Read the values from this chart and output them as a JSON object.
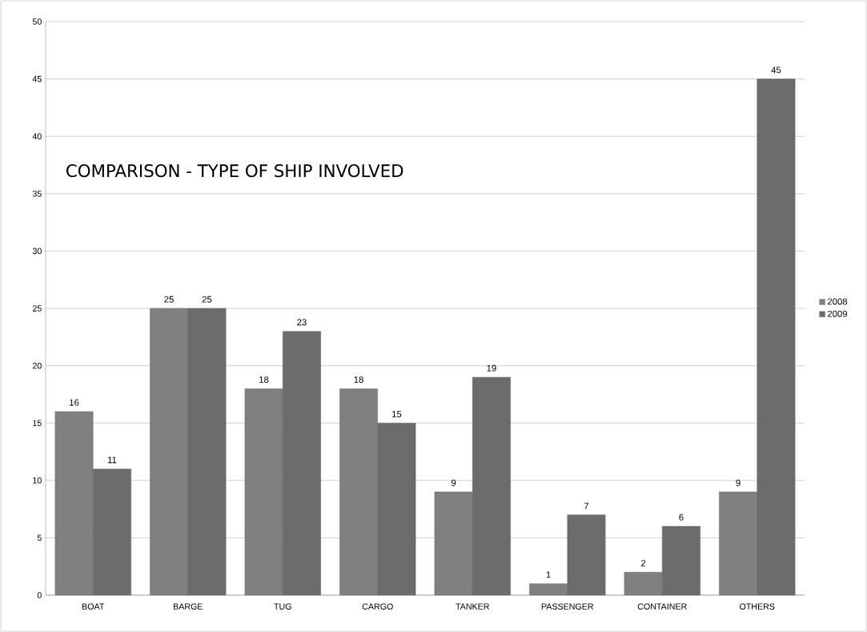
{
  "chart_data": {
    "type": "bar",
    "title": "COMPARISON - TYPE OF SHIP INVOLVED",
    "categories": [
      "BOAT",
      "BARGE",
      "TUG",
      "CARGO",
      "TANKER",
      "PASSENGER",
      "CONTAINER",
      "OTHERS"
    ],
    "series": [
      {
        "name": "2008",
        "color": "#808080",
        "values": [
          16,
          25,
          18,
          18,
          9,
          1,
          2,
          9
        ]
      },
      {
        "name": "2009",
        "color": "#6c6c6c",
        "values": [
          11,
          25,
          23,
          15,
          19,
          7,
          6,
          45
        ]
      }
    ],
    "ylim": [
      0,
      50
    ],
    "yticks": [
      0,
      5,
      10,
      15,
      20,
      25,
      30,
      35,
      40,
      45,
      50
    ],
    "grid": "y",
    "legend": "right",
    "data_labels": true
  }
}
